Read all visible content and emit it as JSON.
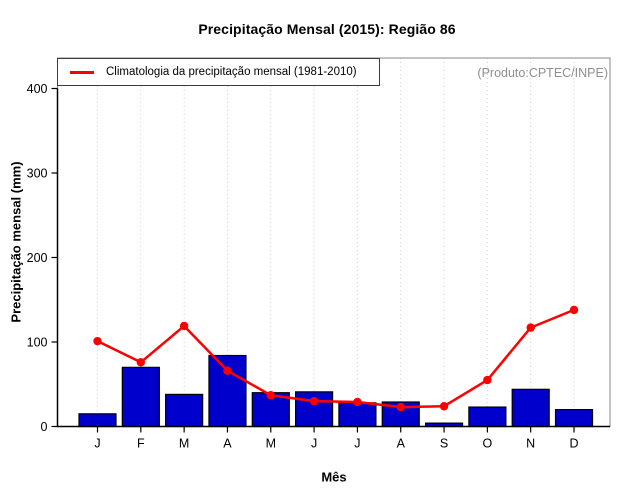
{
  "title": "Precipitação Mensal (2015): Região 86",
  "annotation": "(Produto:CPTEC/INPE)",
  "legend": {
    "label": "Climatologia da precipitação mensal (1981-2010)"
  },
  "colors": {
    "bar_fill": "#0000cc",
    "bar_border": "#000000",
    "line": "#ff0000",
    "grid": "#cfcfcf",
    "box_border": "#8a8a8a",
    "axis": "#000000",
    "annotation_text": "#8f8f8f"
  },
  "chart_data": {
    "type": "bar",
    "title": "Precipitação Mensal (2015): Região 86",
    "xlabel": "Mês",
    "ylabel": "Precipitação mensal (mm)",
    "categories": [
      "J",
      "F",
      "M",
      "A",
      "M",
      "J",
      "J",
      "A",
      "S",
      "O",
      "N",
      "D"
    ],
    "series": [
      {
        "name": "Precipitação Mensal (2015)",
        "type": "bar",
        "color": "#0000cc",
        "values": [
          15,
          70,
          38,
          84,
          40,
          41,
          28,
          29,
          4,
          23,
          44,
          20
        ]
      },
      {
        "name": "Climatologia da precipitação mensal (1981-2010)",
        "type": "line",
        "color": "#ff0000",
        "values": [
          101,
          76,
          119,
          66,
          37,
          30,
          29,
          23,
          24,
          55,
          117,
          138
        ]
      }
    ],
    "ylim": [
      0,
      436
    ],
    "yticks": [
      0,
      100,
      200,
      300,
      400
    ],
    "grid": "vertical-dotted",
    "legend_position": "top-left-inside",
    "annotation": "(Produto:CPTEC/INPE)"
  }
}
